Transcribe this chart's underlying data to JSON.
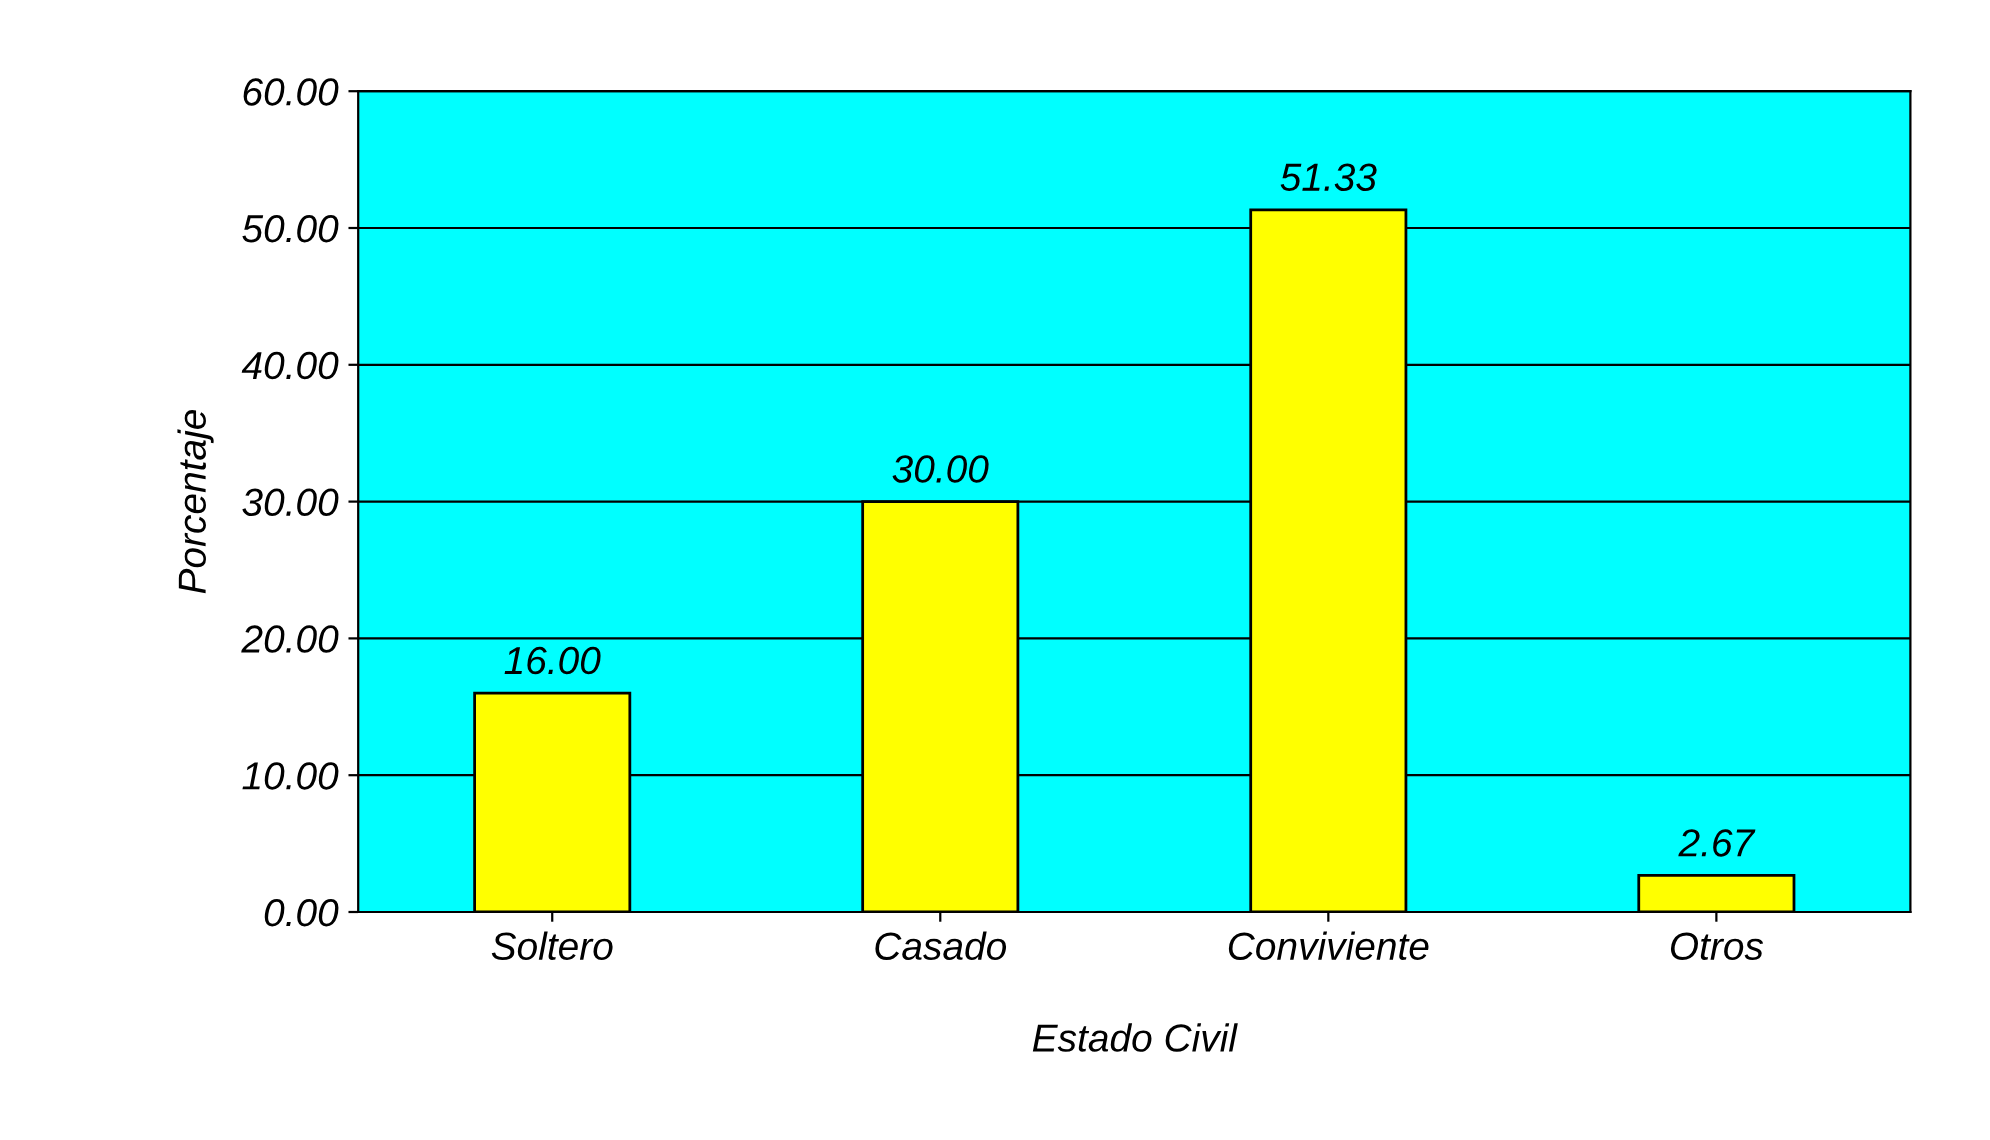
{
  "chart_data": {
    "type": "bar",
    "xlabel": "Estado Civil",
    "ylabel": "Porcentaje",
    "categories": [
      "Soltero",
      "Casado",
      "Conviviente",
      "Otros"
    ],
    "values": [
      16.0,
      30.0,
      51.33,
      2.67
    ],
    "value_labels": [
      "16.00",
      "30.00",
      "51.33",
      "2.67"
    ],
    "color": "#ffff00",
    "ylim": [
      0,
      60
    ],
    "yticks": [
      {
        "value": 0,
        "label": "0.00"
      },
      {
        "value": 10,
        "label": "10.00"
      },
      {
        "value": 20,
        "label": "20.00"
      },
      {
        "value": 30,
        "label": "30.00"
      },
      {
        "value": 40,
        "label": "40.00"
      },
      {
        "value": 50,
        "label": "50.00"
      },
      {
        "value": 60,
        "label": "60.00"
      }
    ],
    "grid": "y"
  }
}
